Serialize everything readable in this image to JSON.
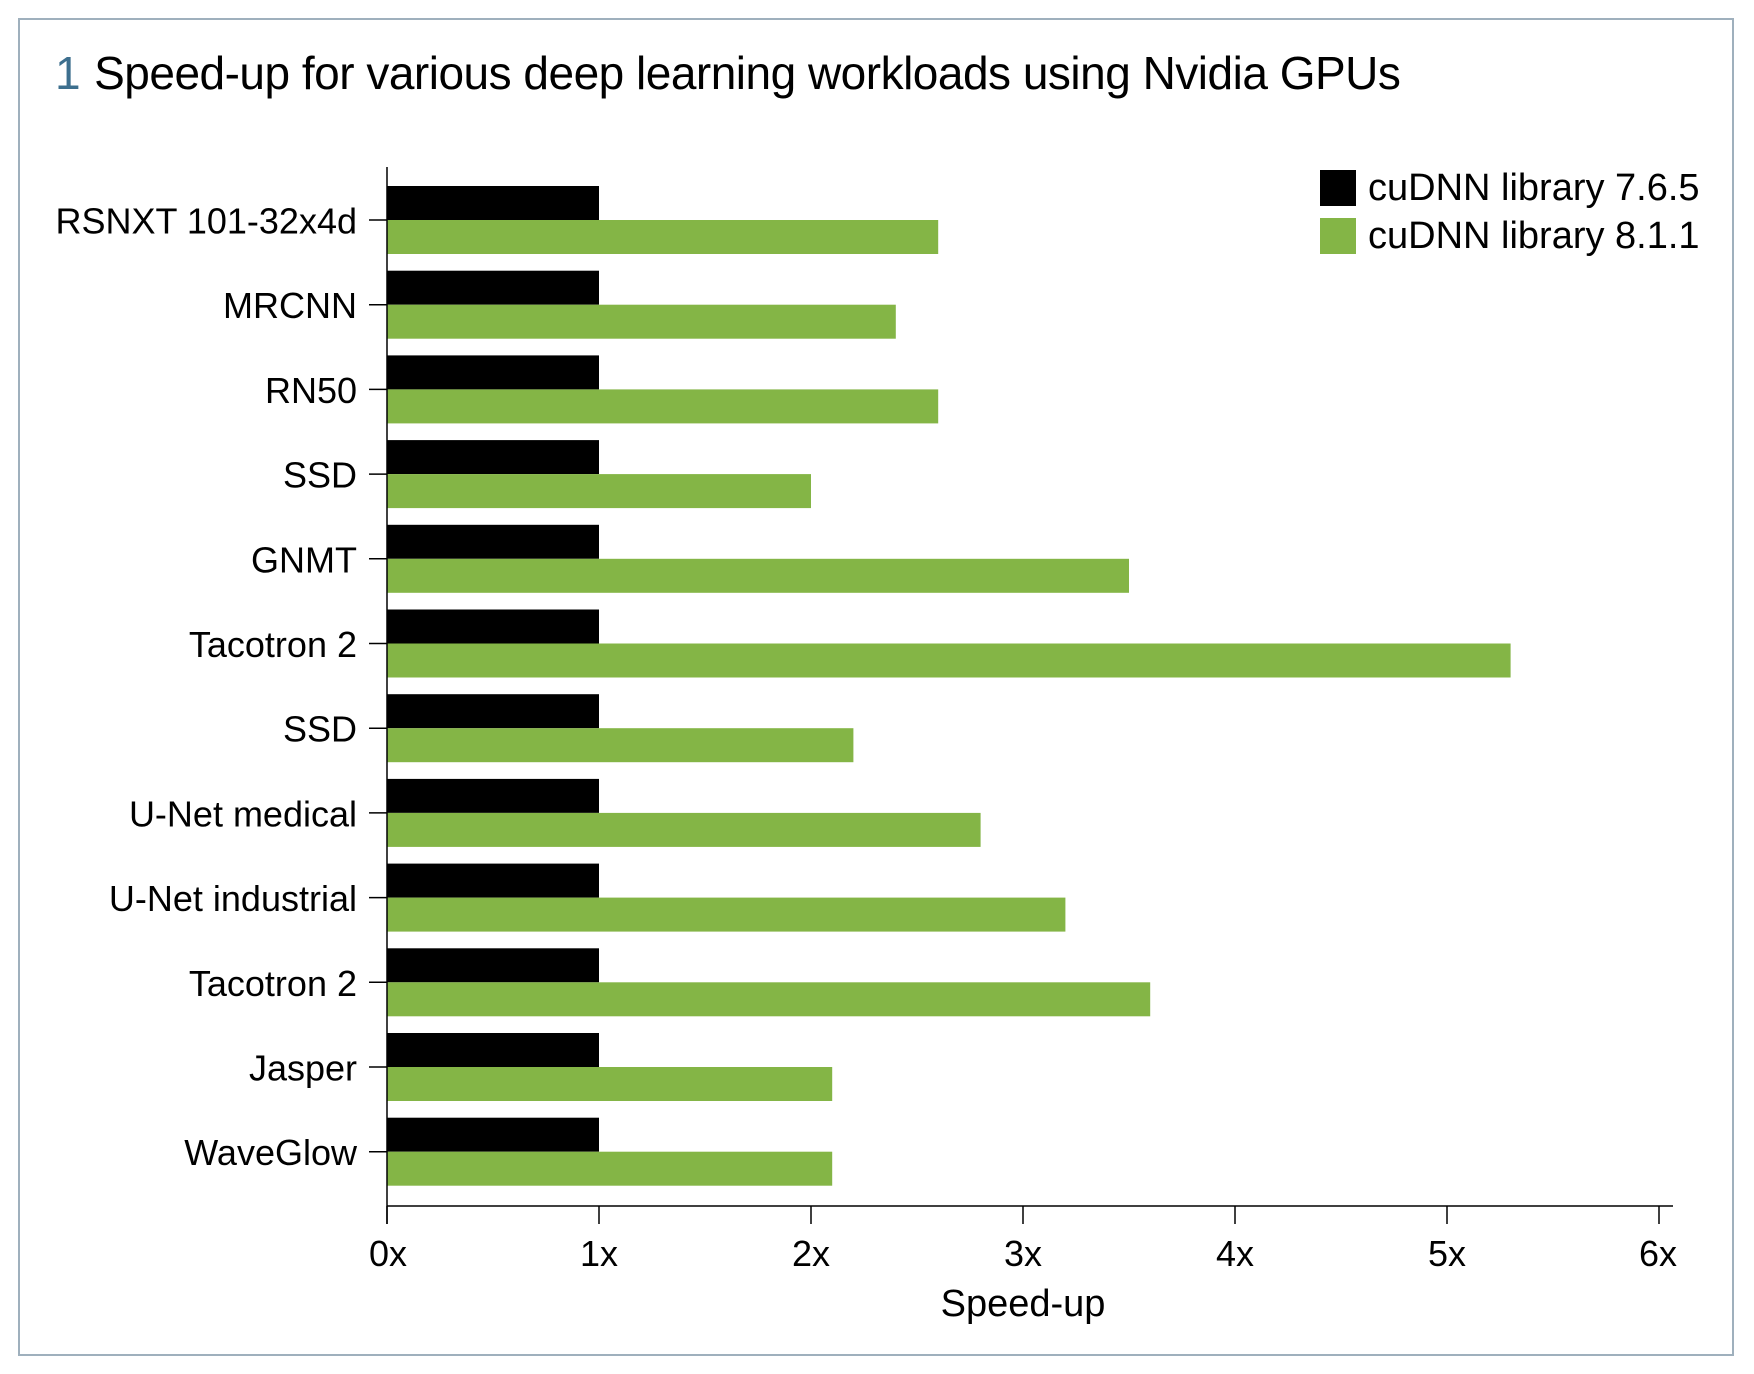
{
  "figure": {
    "number": "1",
    "title": "Speed-up for various deep learning workloads using Nvidia GPUs"
  },
  "colors": {
    "frame_border": "#9fb0bd",
    "figure_number": "#3d6f8e",
    "series_1": "#000000",
    "series_2": "#84b546"
  },
  "chart_data": {
    "type": "bar",
    "orientation": "horizontal",
    "title": "Speed-up for various deep learning workloads using Nvidia GPUs",
    "xlabel": "Speed-up",
    "ylabel": "",
    "xlim": [
      0,
      6
    ],
    "x_ticks": [
      "0x",
      "1x",
      "2x",
      "3x",
      "4x",
      "5x",
      "6x"
    ],
    "grid": false,
    "legend_position": "top-right",
    "categories": [
      "RSNXT 101-32x4d",
      "MRCNN",
      "RN50",
      "SSD",
      "GNMT",
      "Tacotron 2",
      "SSD",
      "U-Net medical",
      "U-Net industrial",
      "Tacotron 2",
      "Jasper",
      "WaveGlow"
    ],
    "series": [
      {
        "name": "cuDNN library 7.6.5",
        "color": "#000000",
        "values": [
          1,
          1,
          1,
          1,
          1,
          1,
          1,
          1,
          1,
          1,
          1,
          1
        ]
      },
      {
        "name": "cuDNN library 8.1.1",
        "color": "#84b546",
        "values": [
          2.6,
          2.4,
          2.6,
          2.0,
          3.5,
          5.3,
          2.2,
          2.8,
          3.2,
          3.6,
          2.1,
          2.1
        ]
      }
    ]
  }
}
